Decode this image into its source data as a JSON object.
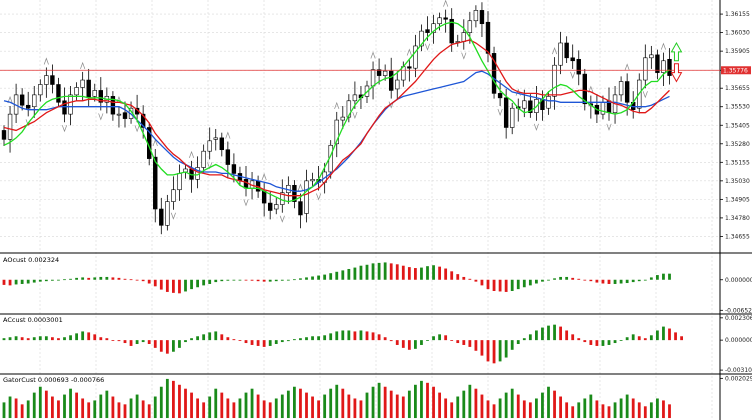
{
  "chart_data": {
    "type": "candlestick",
    "price_line": {
      "value": "1.35776",
      "color": "#e03030"
    },
    "colors": {
      "bull_body": "#ffffff",
      "bear_body": "#000000",
      "candle_outline": "#000000",
      "ma_blue": "#1e56d6",
      "ma_red": "#e01818",
      "ma_green": "#22dd22",
      "hist_up": "#1a8a1a",
      "hist_down": "#e01818",
      "grid": "#d8d8d8",
      "arrow": "#8a8a8a",
      "signal_up": "#22cc22",
      "signal_down": "#e01818"
    },
    "price_panel": {
      "y_range": [
        1.3455,
        1.3625
      ],
      "y_ticks": [
        "1.36155",
        "1.36030",
        "1.35905",
        "1.35776",
        "1.35655",
        "1.35530",
        "1.35405",
        "1.35280",
        "1.35155",
        "1.35030",
        "1.34905",
        "1.34780",
        "1.34655"
      ],
      "closes": [
        1.3531,
        1.3548,
        1.3561,
        1.3554,
        1.3552,
        1.3561,
        1.3568,
        1.3574,
        1.3568,
        1.3556,
        1.3548,
        1.3561,
        1.3566,
        1.3571,
        1.3559,
        1.3564,
        1.3556,
        1.356,
        1.3548,
        1.3548,
        1.3545,
        1.3552,
        1.3548,
        1.3539,
        1.3518,
        1.3484,
        1.3473,
        1.3489,
        1.3497,
        1.3508,
        1.3511,
        1.3504,
        1.3512,
        1.3523,
        1.353,
        1.3532,
        1.3524,
        1.3514,
        1.3508,
        1.3503,
        1.3498,
        1.3503,
        1.3496,
        1.3488,
        1.3483,
        1.3487,
        1.3495,
        1.35,
        1.3489,
        1.348,
        1.3503,
        1.3504,
        1.3502,
        1.3509,
        1.3527,
        1.3544,
        1.3546,
        1.3557,
        1.3561,
        1.3559,
        1.3567,
        1.3578,
        1.3574,
        1.3577,
        1.3564,
        1.3571,
        1.358,
        1.3579,
        1.3594,
        1.3604,
        1.3603,
        1.3609,
        1.3613,
        1.3612,
        1.3596,
        1.3597,
        1.3603,
        1.3611,
        1.3618,
        1.3609,
        1.3589,
        1.3562,
        1.3559,
        1.3539,
        1.3552,
        1.3552,
        1.3557,
        1.3549,
        1.3558,
        1.3551,
        1.356,
        1.3581,
        1.3596,
        1.3586,
        1.3584,
        1.3575,
        1.3555,
        1.3554,
        1.3548,
        1.3556,
        1.3549,
        1.3561,
        1.357,
        1.3556,
        1.3551,
        1.3571,
        1.3586,
        1.3588,
        1.3576,
        1.3584,
        1.3574
      ],
      "blue_ma": [
        1.3557,
        1.3556,
        1.3554,
        1.3552,
        1.3551,
        1.3551,
        1.3551,
        1.3551,
        1.3552,
        1.3553,
        1.3553,
        1.3553,
        1.3553,
        1.3553,
        1.3553,
        1.3553,
        1.3553,
        1.3553,
        1.3553,
        1.3553,
        1.3551,
        1.3548,
        1.3544,
        1.354,
        1.3536,
        1.3531,
        1.3527,
        1.3523,
        1.3519,
        1.3516,
        1.3514,
        1.3512,
        1.351,
        1.3509,
        1.3509,
        1.3509,
        1.3508,
        1.3508,
        1.3507,
        1.3506,
        1.3505,
        1.3504,
        1.3503,
        1.3502,
        1.3501,
        1.3499,
        1.3498,
        1.3497,
        1.3496,
        1.3496,
        1.3497,
        1.3499,
        1.3502,
        1.3505,
        1.3508,
        1.3511,
        1.3515,
        1.3519,
        1.3524,
        1.3529,
        1.3535,
        1.3541,
        1.3546,
        1.3551,
        1.3555,
        1.3558,
        1.356,
        1.3561,
        1.3562,
        1.3563,
        1.3564,
        1.3565,
        1.3566,
        1.3567,
        1.3568,
        1.3569,
        1.357,
        1.3573,
        1.3576,
        1.3577,
        1.3575,
        1.3572,
        1.3569,
        1.3566,
        1.3563,
        1.3562,
        1.3561,
        1.356,
        1.3559,
        1.3558,
        1.3557,
        1.3557,
        1.3556,
        1.3556,
        1.3556,
        1.3556,
        1.3556,
        1.3556,
        1.3556,
        1.3556,
        1.3556,
        1.3556,
        1.3555,
        1.3554,
        1.3553,
        1.3553,
        1.3553,
        1.3554,
        1.3556,
        1.3558,
        1.356
      ],
      "red_ma": [
        1.3539,
        1.3538,
        1.3537,
        1.3539,
        1.3541,
        1.3543,
        1.3546,
        1.3549,
        1.3551,
        1.3553,
        1.3555,
        1.3556,
        1.3557,
        1.3557,
        1.3558,
        1.3558,
        1.3557,
        1.3557,
        1.3556,
        1.3556,
        1.3555,
        1.3554,
        1.3551,
        1.3547,
        1.3542,
        1.3535,
        1.353,
        1.3525,
        1.3521,
        1.3518,
        1.3514,
        1.3511,
        1.3509,
        1.3508,
        1.3507,
        1.3507,
        1.3507,
        1.3505,
        1.3504,
        1.3503,
        1.3502,
        1.35,
        1.3499,
        1.3497,
        1.3496,
        1.3495,
        1.3494,
        1.3493,
        1.3493,
        1.3493,
        1.3494,
        1.3496,
        1.3498,
        1.3502,
        1.3507,
        1.3512,
        1.3517,
        1.352,
        1.3524,
        1.3528,
        1.3535,
        1.3541,
        1.3547,
        1.3552,
        1.3555,
        1.3558,
        1.3562,
        1.3566,
        1.357,
        1.3575,
        1.358,
        1.3585,
        1.3589,
        1.3592,
        1.3595,
        1.3596,
        1.3597,
        1.3598,
        1.3596,
        1.3593,
        1.359,
        1.3584,
        1.3577,
        1.357,
        1.3565,
        1.3563,
        1.3562,
        1.3562,
        1.3562,
        1.3561,
        1.3561,
        1.3561,
        1.3561,
        1.3562,
        1.3563,
        1.3564,
        1.3564,
        1.3563,
        1.3561,
        1.3559,
        1.3557,
        1.3555,
        1.3554,
        1.3552,
        1.355,
        1.3549,
        1.3549,
        1.3552,
        1.3556,
        1.356,
        1.3564
      ],
      "green_ma": [
        1.3527,
        1.3529,
        1.3532,
        1.3536,
        1.3542,
        1.3547,
        1.3552,
        1.3556,
        1.3558,
        1.3559,
        1.356,
        1.356,
        1.356,
        1.356,
        1.3559,
        1.3559,
        1.3559,
        1.3558,
        1.3558,
        1.3557,
        1.3555,
        1.355,
        1.3544,
        1.3535,
        1.3526,
        1.3516,
        1.3511,
        1.3507,
        1.3507,
        1.3508,
        1.3509,
        1.3507,
        1.3507,
        1.351,
        1.3512,
        1.3514,
        1.3512,
        1.3509,
        1.3505,
        1.35,
        1.3498,
        1.3498,
        1.3498,
        1.3496,
        1.3494,
        1.3492,
        1.349,
        1.3489,
        1.349,
        1.3492,
        1.3496,
        1.3499,
        1.3504,
        1.3512,
        1.352,
        1.353,
        1.3539,
        1.3547,
        1.3554,
        1.3559,
        1.3563,
        1.3567,
        1.357,
        1.3572,
        1.3573,
        1.3576,
        1.358,
        1.3585,
        1.359,
        1.3595,
        1.36,
        1.3604,
        1.3607,
        1.3609,
        1.361,
        1.3609,
        1.3606,
        1.36,
        1.3592,
        1.3584,
        1.3577,
        1.357,
        1.3564,
        1.356,
        1.3557,
        1.3552,
        1.3549,
        1.355,
        1.3553,
        1.3558,
        1.3563,
        1.3566,
        1.3568,
        1.3567,
        1.3564,
        1.356,
        1.3557,
        1.3554,
        1.3551,
        1.355,
        1.3549,
        1.3548,
        1.3549,
        1.3551,
        1.3556,
        1.3562,
        1.3567,
        1.357,
        1.357,
        1.3575,
        1.3578
      ]
    },
    "panels": [
      {
        "label": "AOcust 0.002324",
        "y_ticks": [
          "0.000000",
          "-0.006525"
        ],
        "y_range": [
          -0.0071,
          0.0055
        ],
        "zero": 0.0,
        "values": [
          -0.0011,
          -0.0012,
          -0.001,
          -0.0009,
          -0.0008,
          -0.0006,
          -0.0004,
          -0.0003,
          -0.0002,
          -0.0001,
          0.0001,
          0.0002,
          0.0004,
          0.0005,
          0.0004,
          0.0005,
          0.0006,
          0.0006,
          0.0005,
          0.0004,
          0.0002,
          0.0001,
          0.0,
          -0.0003,
          -0.0008,
          -0.0014,
          -0.0021,
          -0.0026,
          -0.0028,
          -0.0029,
          -0.0025,
          -0.002,
          -0.0016,
          -0.0012,
          -0.0009,
          -0.0005,
          -0.0003,
          -0.0002,
          -0.0001,
          0.0,
          -0.0001,
          -0.0002,
          -0.0003,
          -0.0004,
          -0.0004,
          -0.0003,
          -0.0002,
          -0.0001,
          0.0001,
          0.0003,
          0.0005,
          0.0007,
          0.0009,
          0.0011,
          0.0014,
          0.0017,
          0.002,
          0.0023,
          0.0026,
          0.003,
          0.0032,
          0.0035,
          0.0036,
          0.0037,
          0.0035,
          0.0033,
          0.003,
          0.0027,
          0.0025,
          0.0026,
          0.0029,
          0.0031,
          0.0028,
          0.0024,
          0.0018,
          0.0012,
          0.0006,
          0.0002,
          -0.0004,
          -0.0012,
          -0.002,
          -0.0024,
          -0.0025,
          -0.0026,
          -0.0024,
          -0.002,
          -0.0016,
          -0.0012,
          -0.0008,
          -0.0004,
          0.0,
          0.0003,
          0.0006,
          0.0006,
          0.0004,
          0.0002,
          0.0,
          -0.0003,
          -0.0006,
          -0.0008,
          -0.0009,
          -0.0009,
          -0.0008,
          -0.0007,
          -0.0005,
          -0.0003,
          0.0,
          0.0005,
          0.001,
          0.0013,
          0.0013
        ]
      },
      {
        "label": "ACcust 0.0003001",
        "y_ticks": [
          "0.0023065",
          "0.000000",
          "-0.0031010"
        ],
        "y_range": [
          -0.0034,
          0.0026
        ],
        "zero": 0.0,
        "values": [
          0.0002,
          0.0003,
          0.0004,
          0.0003,
          0.0002,
          0.0003,
          0.0004,
          0.0004,
          0.0003,
          0.0002,
          0.0003,
          0.0005,
          0.0007,
          0.0009,
          0.0008,
          0.0006,
          0.0003,
          0.0002,
          0.0,
          -0.0001,
          -0.0003,
          -0.0006,
          -0.0004,
          -0.0002,
          -0.0004,
          -0.0008,
          -0.0012,
          -0.0014,
          -0.0012,
          -0.0008,
          -0.0002,
          0.0002,
          0.0004,
          0.0006,
          0.0008,
          0.0009,
          0.0006,
          0.0003,
          0.0001,
          0.0,
          -0.0003,
          -0.0005,
          -0.0006,
          -0.0007,
          -0.0006,
          -0.0004,
          -0.0002,
          -0.0001,
          0.0001,
          0.0002,
          0.0003,
          0.0004,
          0.0004,
          0.0005,
          0.0007,
          0.0009,
          0.001,
          0.001,
          0.0009,
          0.001,
          0.0009,
          0.0008,
          0.0006,
          0.0003,
          -0.0001,
          -0.0005,
          -0.0008,
          -0.001,
          -0.0009,
          -0.0005,
          0.0,
          0.0004,
          0.0006,
          0.0005,
          0.0,
          -0.0003,
          -0.0005,
          -0.0007,
          -0.0011,
          -0.0016,
          -0.0022,
          -0.0024,
          -0.0022,
          -0.0018,
          -0.001,
          -0.0004,
          0.0002,
          0.0006,
          0.001,
          0.0013,
          0.0015,
          0.0016,
          0.0014,
          0.001,
          0.0006,
          0.0002,
          -0.0002,
          -0.0005,
          -0.0006,
          -0.0006,
          -0.0005,
          -0.0003,
          0.0,
          0.0003,
          0.0006,
          0.0004,
          0.0002,
          0.0005,
          0.001,
          0.0014,
          0.0012,
          0.0008,
          0.0004
        ]
      },
      {
        "label": "GatorCust 0.000693 -0.000766",
        "y_ticks": [
          "0.002029"
        ],
        "y_range": [
          -0.0001,
          0.0022
        ],
        "zero": 0.0,
        "values": [
          0.0008,
          0.0011,
          0.001,
          0.0007,
          0.0009,
          0.0013,
          0.0016,
          0.0014,
          0.0011,
          0.0009,
          0.0012,
          0.0015,
          0.0013,
          0.001,
          0.0008,
          0.0009,
          0.0012,
          0.0014,
          0.0011,
          0.0008,
          0.0007,
          0.001,
          0.0012,
          0.0009,
          0.0007,
          0.0011,
          0.0016,
          0.002,
          0.0019,
          0.0017,
          0.0015,
          0.0013,
          0.001,
          0.0008,
          0.0011,
          0.0015,
          0.0013,
          0.001,
          0.0008,
          0.001,
          0.0013,
          0.0015,
          0.0012,
          0.0009,
          0.0008,
          0.001,
          0.0012,
          0.0014,
          0.0016,
          0.0015,
          0.0013,
          0.0011,
          0.0009,
          0.0012,
          0.0015,
          0.0017,
          0.0015,
          0.0012,
          0.001,
          0.0009,
          0.0013,
          0.0016,
          0.0018,
          0.0016,
          0.0014,
          0.0012,
          0.0011,
          0.0014,
          0.0017,
          0.0019,
          0.0018,
          0.0016,
          0.0013,
          0.001,
          0.0008,
          0.0011,
          0.0014,
          0.0017,
          0.0015,
          0.0012,
          0.0009,
          0.0007,
          0.001,
          0.0013,
          0.0015,
          0.0012,
          0.0009,
          0.0008,
          0.001,
          0.0013,
          0.0016,
          0.0014,
          0.0011,
          0.0008,
          0.0006,
          0.0008,
          0.001,
          0.0012,
          0.0009,
          0.0007,
          0.0006,
          0.0008,
          0.001,
          0.0012,
          0.001,
          0.0008,
          0.0006,
          0.0008,
          0.001,
          0.0009,
          0.0007
        ],
        "colors": [
          0,
          0,
          1,
          1,
          0,
          0,
          0,
          1,
          1,
          1,
          0,
          0,
          1,
          1,
          1,
          0,
          0,
          0,
          1,
          1,
          1,
          0,
          0,
          1,
          1,
          0,
          0,
          0,
          1,
          1,
          1,
          1,
          1,
          1,
          0,
          0,
          1,
          1,
          1,
          0,
          0,
          0,
          1,
          1,
          1,
          0,
          0,
          0,
          0,
          1,
          1,
          1,
          1,
          0,
          0,
          0,
          1,
          1,
          1,
          1,
          0,
          0,
          0,
          1,
          1,
          1,
          1,
          0,
          0,
          0,
          1,
          1,
          1,
          1,
          1,
          0,
          0,
          0,
          1,
          1,
          1,
          1,
          0,
          0,
          0,
          1,
          1,
          1,
          0,
          0,
          0,
          1,
          1,
          1,
          1,
          0,
          0,
          0,
          1,
          1,
          1,
          0,
          0,
          0,
          1,
          1,
          1,
          0,
          0,
          1,
          1
        ]
      }
    ]
  }
}
